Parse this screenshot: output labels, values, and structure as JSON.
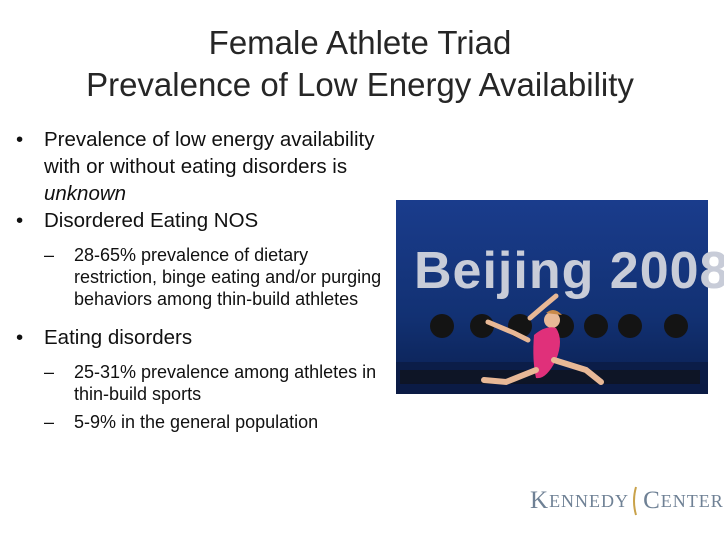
{
  "title": {
    "line1": "Female Athlete Triad",
    "line2": "Prevalence of Low Energy Availability"
  },
  "bullets": {
    "b1_text": "Prevalence of low energy availability with or without eating disorders is ",
    "b1_emph": "unknown",
    "b2": "Disordered Eating NOS",
    "b2_sub1": "28-65% prevalence of dietary restriction, binge eating and/or purging behaviors among thin-build athletes",
    "b3": "Eating disorders",
    "b3_sub1": "25-31% prevalence among athletes in thin-build sports",
    "b3_sub2": "5-9% in the general population"
  },
  "photo": {
    "banner_text": "Beijing 2008"
  },
  "logo": {
    "k": "K",
    "enned": "ENNEDY",
    "c": "C",
    "enter": "ENTER"
  },
  "colors": {
    "photo_background": "#0f2a6a",
    "leotard": "#e0307a",
    "logo_text": "#6f8195",
    "logo_swoosh": "#c9a24a"
  }
}
